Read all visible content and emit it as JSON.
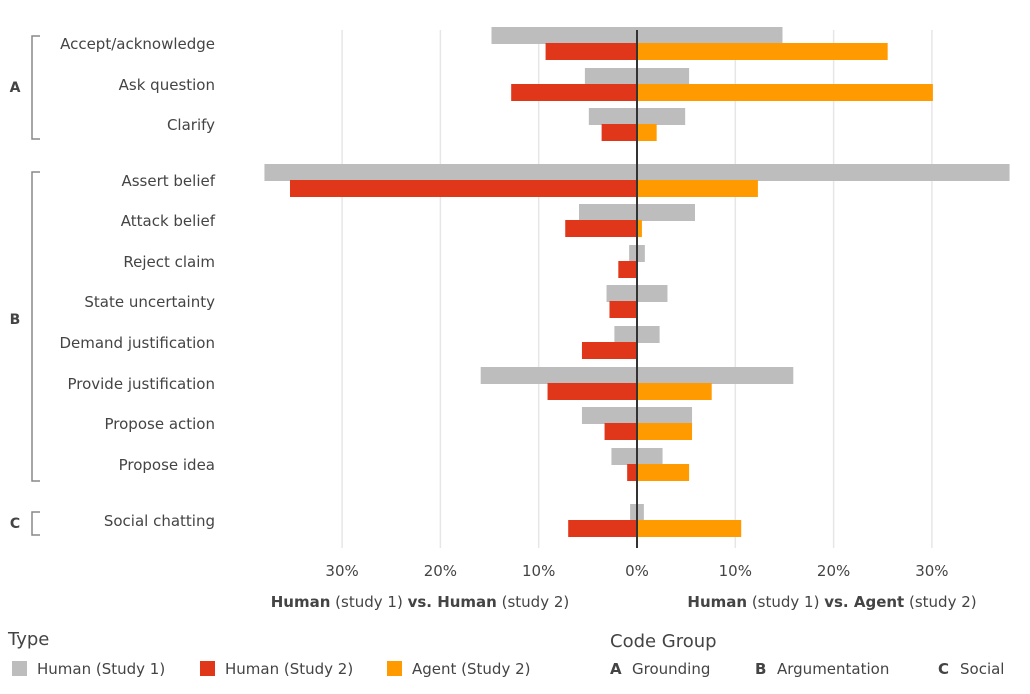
{
  "chart_data": {
    "type": "bar",
    "orientation": "horizontal",
    "grid": true,
    "tick_labels": [
      "30%",
      "20%",
      "10%",
      "0%",
      "10%",
      "20%",
      "30%"
    ],
    "axis_titles": {
      "left": {
        "bold1": "Human",
        "mid1": " (study 1) ",
        "bold2": "vs. Human",
        "mid2": " (study 2)"
      },
      "right": {
        "bold1": "Human",
        "mid1": " (study 1) ",
        "bold2": "vs. Agent",
        "mid2": " (study 2)"
      }
    },
    "groups": [
      {
        "letter": "A",
        "categories": [
          "Accept/acknowledge",
          "Ask question",
          "Clarify"
        ]
      },
      {
        "letter": "B",
        "categories": [
          "Assert belief",
          "Attack belief",
          "Reject claim",
          "State uncertainty",
          "Demand justification",
          "Provide justification",
          "Propose action",
          "Propose idea"
        ]
      },
      {
        "letter": "C",
        "categories": [
          "Social chatting"
        ]
      }
    ],
    "categories": [
      "Accept/acknowledge",
      "Ask question",
      "Clarify",
      "Assert belief",
      "Attack belief",
      "Reject claim",
      "State uncertainty",
      "Demand justification",
      "Provide justification",
      "Propose action",
      "Propose idea",
      "Social chatting"
    ],
    "series": [
      {
        "name": "Human (Study 1)",
        "color": "#bdbdbd",
        "values": [
          14.8,
          5.3,
          4.9,
          37.9,
          5.9,
          0.8,
          3.1,
          2.3,
          15.9,
          5.6,
          2.6,
          0.7
        ]
      },
      {
        "name": "Human (Study 2)",
        "color": "#e0361a",
        "values": [
          9.3,
          12.8,
          3.6,
          35.3,
          7.3,
          1.9,
          2.8,
          5.6,
          9.1,
          3.3,
          1.0,
          7.0
        ]
      },
      {
        "name": "Agent (Study 2)",
        "color": "#ff9a00",
        "values": [
          25.5,
          30.1,
          2.0,
          12.3,
          0.5,
          0,
          0,
          0,
          7.6,
          5.6,
          5.3,
          10.6
        ]
      }
    ]
  },
  "legend": {
    "type_title": "Type",
    "type_items": [
      {
        "label": "Human (Study 1)",
        "color": "#bdbdbd"
      },
      {
        "label": "Human (Study 2)",
        "color": "#e0361a"
      },
      {
        "label": "Agent (Study 2)",
        "color": "#ff9a00"
      }
    ],
    "code_title": "Code Group",
    "code_items": [
      {
        "letter": "A",
        "label": "Grounding"
      },
      {
        "letter": "B",
        "label": "Argumentation"
      },
      {
        "letter": "C",
        "label": "Social"
      }
    ]
  }
}
